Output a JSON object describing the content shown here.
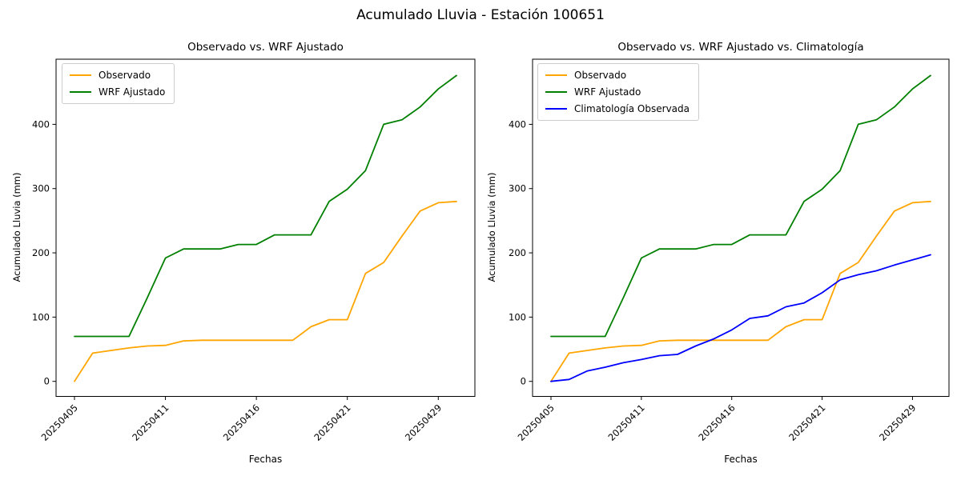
{
  "figure": {
    "title": "Acumulado Lluvia - Estación 100651",
    "background": "#ffffff",
    "text_color": "#000000"
  },
  "chart_data": [
    {
      "type": "line",
      "title": "Observado vs. WRF Ajustado",
      "xlabel": "Fechas",
      "ylabel": "Acumulado Lluvia (mm)",
      "x_tick_labels": [
        "20250405",
        "20250411",
        "20250416",
        "20250421",
        "20250429"
      ],
      "x_tick_positions": [
        0,
        5,
        10,
        15,
        20
      ],
      "y_ticks": [
        0,
        100,
        200,
        300,
        400
      ],
      "ylim": [
        -23,
        506
      ],
      "n_points": 22,
      "grid": false,
      "legend_position": "upper left",
      "series": [
        {
          "name": "Observado",
          "color": "#FFA500",
          "values": [
            0,
            44,
            48,
            52,
            55,
            56,
            63,
            64,
            64,
            64,
            64,
            64,
            64,
            85,
            96,
            96,
            168,
            185,
            226,
            265,
            278,
            280
          ]
        },
        {
          "name": "WRF Ajustado",
          "color": "#008000",
          "values": [
            70,
            70,
            70,
            70,
            130,
            192,
            206,
            206,
            206,
            213,
            213,
            228,
            228,
            228,
            280,
            299,
            328,
            400,
            407,
            427,
            455,
            476
          ]
        }
      ]
    },
    {
      "type": "line",
      "title": "Observado vs. WRF Ajustado vs. Climatología",
      "xlabel": "Fechas",
      "ylabel": "Acumulado Lluvia (mm)",
      "x_tick_labels": [
        "20250405",
        "20250411",
        "20250416",
        "20250421",
        "20250429"
      ],
      "x_tick_positions": [
        0,
        5,
        10,
        15,
        20
      ],
      "y_ticks": [
        0,
        100,
        200,
        300,
        400
      ],
      "ylim": [
        -23,
        506
      ],
      "n_points": 22,
      "grid": false,
      "legend_position": "upper left",
      "series": [
        {
          "name": "Observado",
          "color": "#FFA500",
          "values": [
            0,
            44,
            48,
            52,
            55,
            56,
            63,
            64,
            64,
            64,
            64,
            64,
            64,
            85,
            96,
            96,
            168,
            185,
            226,
            265,
            278,
            280
          ]
        },
        {
          "name": "WRF Ajustado",
          "color": "#008000",
          "values": [
            70,
            70,
            70,
            70,
            130,
            192,
            206,
            206,
            206,
            213,
            213,
            228,
            228,
            228,
            280,
            299,
            328,
            400,
            407,
            427,
            455,
            476
          ]
        },
        {
          "name": "Climatología Observada",
          "color": "#0000FF",
          "values": [
            0,
            3,
            16,
            22,
            29,
            34,
            40,
            42,
            55,
            66,
            80,
            98,
            102,
            116,
            122,
            138,
            158,
            166,
            172,
            181,
            189,
            197
          ]
        }
      ]
    }
  ]
}
